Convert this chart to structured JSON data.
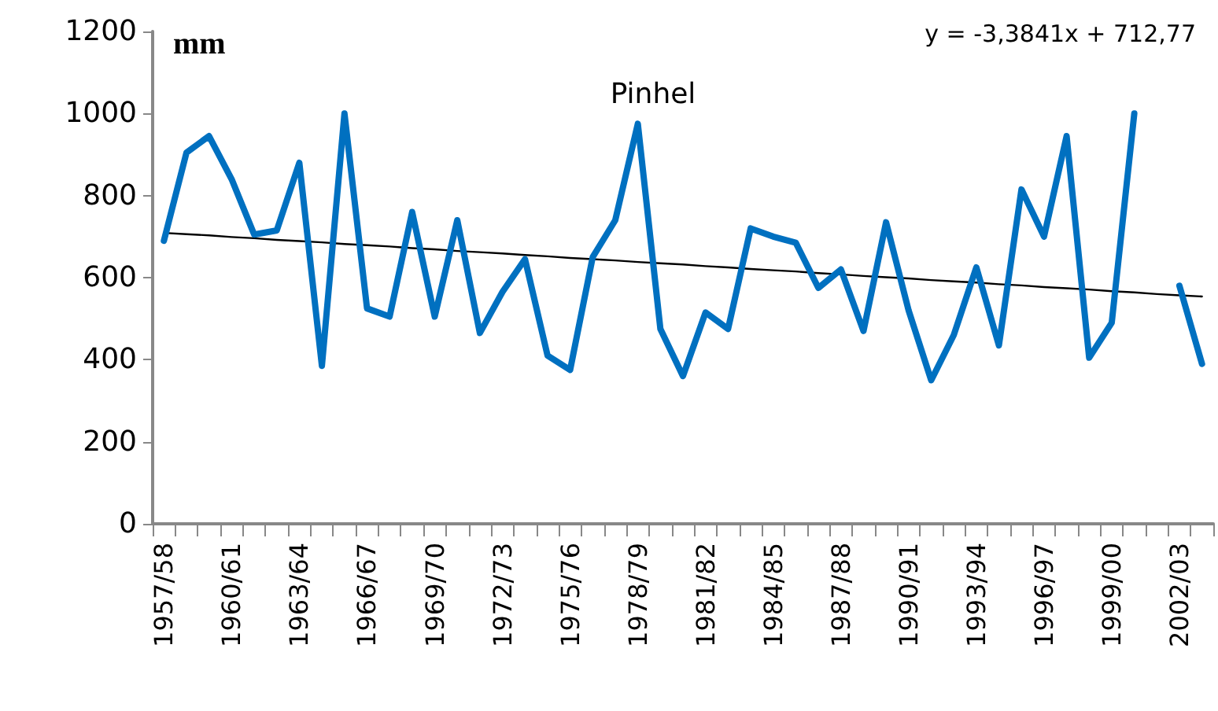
{
  "chart_data": {
    "type": "line",
    "title": "Pinhel",
    "ylabel": "mm",
    "annotations": [
      "y = -3,3841x + 712,77"
    ],
    "categories": [
      "1957/58",
      null,
      null,
      "1960/61",
      null,
      null,
      "1963/64",
      null,
      null,
      "1966/67",
      null,
      null,
      "1969/70",
      null,
      null,
      "1972/73",
      null,
      null,
      "1975/76",
      null,
      null,
      "1978/79",
      null,
      null,
      "1981/82",
      null,
      null,
      "1984/85",
      null,
      null,
      "1987/88",
      null,
      null,
      "1990/91",
      null,
      null,
      "1993/94",
      null,
      null,
      "1996/97",
      null,
      null,
      "1999/00",
      null,
      null,
      "2002/03",
      null
    ],
    "series": [
      {
        "color": "#0070c0",
        "line_style": "solid",
        "values": [
          690,
          905,
          945,
          840,
          705,
          715,
          880,
          385,
          1000,
          525,
          505,
          760,
          505,
          740,
          465,
          565,
          645,
          410,
          375,
          650,
          740,
          975,
          475,
          360,
          515,
          475,
          720,
          700,
          685,
          575,
          620,
          470,
          735,
          520,
          350,
          460,
          625,
          435,
          815,
          700,
          945,
          405,
          490,
          1000,
          null,
          580,
          390
        ]
      },
      {
        "color": "#000000",
        "line_style": "solid",
        "values": [
          709,
          706,
          703,
          699,
          696,
          692,
          689,
          686,
          682,
          679,
          676,
          672,
          669,
          665,
          662,
          659,
          655,
          652,
          648,
          645,
          642,
          638,
          635,
          632,
          628,
          625,
          621,
          618,
          615,
          611,
          608,
          604,
          601,
          598,
          594,
          591,
          588,
          584,
          581,
          577,
          574,
          571,
          567,
          564,
          560,
          557,
          554
        ]
      }
    ],
    "ylim": [
      0,
      1200
    ],
    "yticks": [
      0,
      200,
      400,
      600,
      800,
      1000,
      1200
    ],
    "grid": false,
    "marker": "none"
  }
}
